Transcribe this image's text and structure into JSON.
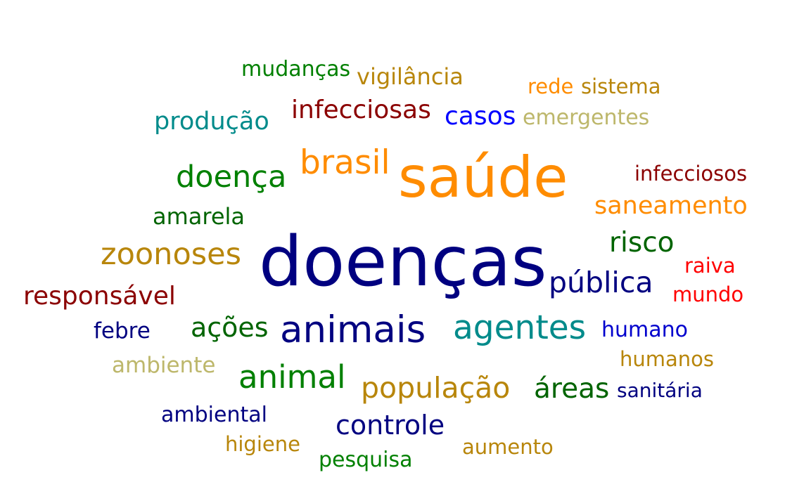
{
  "words": [
    {
      "text": "saúde",
      "color": "#FF8C00"
    },
    {
      "text": "doenças",
      "color": "#000080"
    },
    {
      "text": "animais",
      "color": "#000080"
    },
    {
      "text": "agentes",
      "color": "#008B8B"
    },
    {
      "text": "brasil",
      "color": "#FF8C00"
    },
    {
      "text": "doença",
      "color": "#008000"
    },
    {
      "text": "zoonoses",
      "color": "#B8860B"
    },
    {
      "text": "animal",
      "color": "#008000"
    },
    {
      "text": "população",
      "color": "#B8860B"
    },
    {
      "text": "pública",
      "color": "#000080"
    },
    {
      "text": "controle",
      "color": "#000080"
    },
    {
      "text": "áreas",
      "color": "#006400"
    },
    {
      "text": "risco",
      "color": "#006400"
    },
    {
      "text": "responsável",
      "color": "#8B0000"
    },
    {
      "text": "infecciosas",
      "color": "#8B0000"
    },
    {
      "text": "casos",
      "color": "#0000FF"
    },
    {
      "text": "produção",
      "color": "#008B8B"
    },
    {
      "text": "saneamento",
      "color": "#FF8C00"
    },
    {
      "text": "ações",
      "color": "#006400"
    },
    {
      "text": "vigilância",
      "color": "#B8860B"
    },
    {
      "text": "mudanças",
      "color": "#008000"
    },
    {
      "text": "rede",
      "color": "#FF8C00"
    },
    {
      "text": "sistema",
      "color": "#B8860B"
    },
    {
      "text": "emergentes",
      "color": "#BDB76B"
    },
    {
      "text": "infecciosos",
      "color": "#8B0000"
    },
    {
      "text": "amarela",
      "color": "#006400"
    },
    {
      "text": "raiva",
      "color": "#FF0000"
    },
    {
      "text": "mundo",
      "color": "#FF0000"
    },
    {
      "text": "febre",
      "color": "#000080"
    },
    {
      "text": "humano",
      "color": "#0000CD"
    },
    {
      "text": "ambiente",
      "color": "#BDB76B"
    },
    {
      "text": "humanos",
      "color": "#B8860B"
    },
    {
      "text": "sanitária",
      "color": "#000080"
    },
    {
      "text": "ambiental",
      "color": "#000080"
    },
    {
      "text": "higiene",
      "color": "#B8860B"
    },
    {
      "text": "aumento",
      "color": "#B8860B"
    },
    {
      "text": "pesquisa",
      "color": "#008000"
    }
  ]
}
